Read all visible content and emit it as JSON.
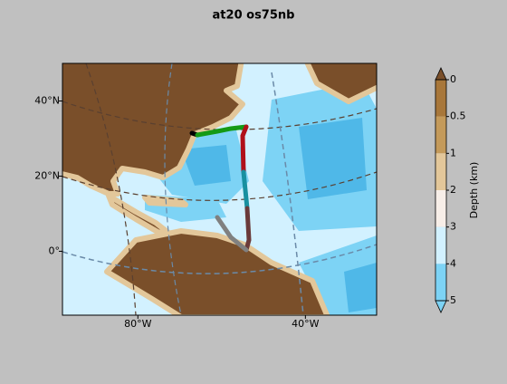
{
  "chart_data": {
    "type": "map",
    "title": "at20 os75nb",
    "xlim": [
      -98,
      -23
    ],
    "ylim": [
      -17,
      50
    ],
    "xticks": [
      {
        "value": -80,
        "label": "80°W"
      },
      {
        "value": -40,
        "label": "40°W"
      }
    ],
    "yticks": [
      {
        "value": 40,
        "label": "40°N"
      },
      {
        "value": 20,
        "label": "20°N"
      },
      {
        "value": 0,
        "label": "0°"
      }
    ],
    "colorbar": {
      "label": "Depth (km)",
      "ticks": [
        0,
        0.5,
        1,
        2,
        3,
        4,
        5
      ],
      "colors": [
        "#a8773a",
        "#c49a5a",
        "#e3c79a",
        "#f7eee8",
        "#d2f1ff",
        "#7dd3f5"
      ],
      "extend_colors": [
        "#7a4f2a",
        "#7dd3f5"
      ]
    }
  }
}
